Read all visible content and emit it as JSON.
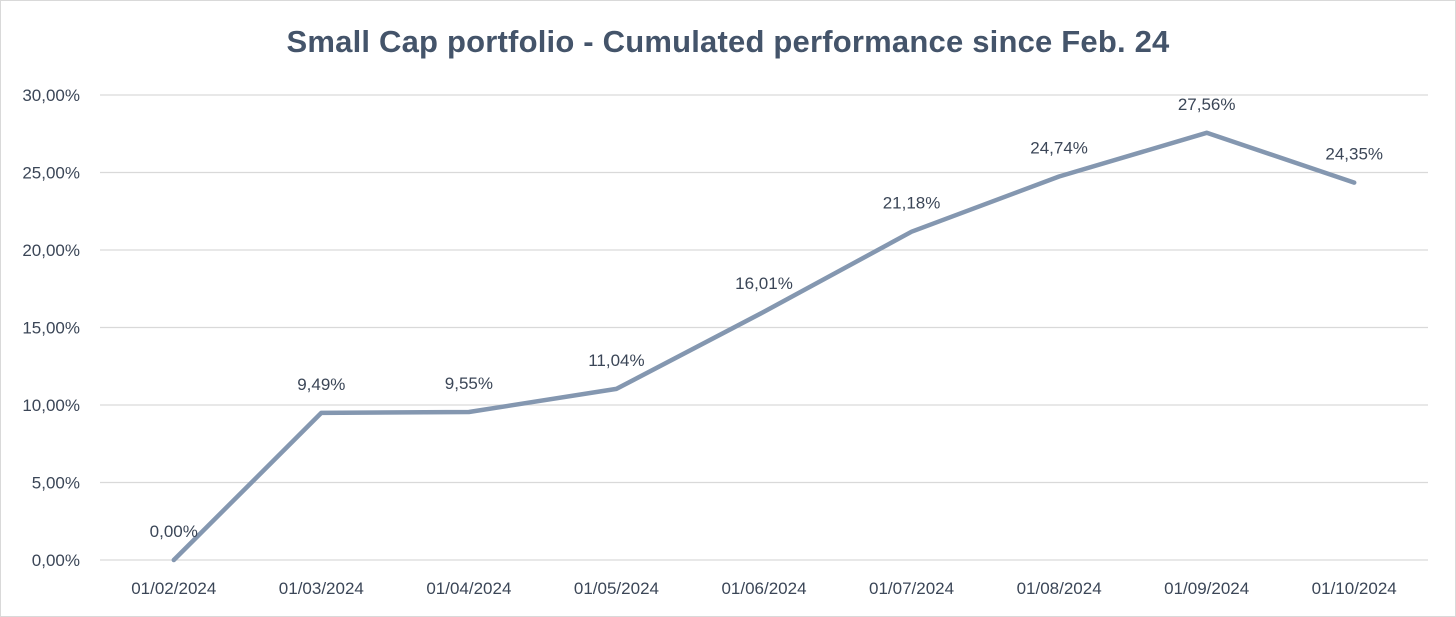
{
  "chart_data": {
    "type": "line",
    "title": "Small Cap portfolio - Cumulated performance since Feb. 24",
    "xlabel": "",
    "ylabel": "",
    "categories": [
      "01/02/2024",
      "01/03/2024",
      "01/04/2024",
      "01/05/2024",
      "01/06/2024",
      "01/07/2024",
      "01/08/2024",
      "01/09/2024",
      "01/10/2024"
    ],
    "series": [
      {
        "values": [
          0.0,
          9.49,
          9.55,
          11.04,
          16.01,
          21.18,
          24.74,
          27.56,
          24.35
        ],
        "data_labels": [
          "0,00%",
          "9,49%",
          "9,55%",
          "11,04%",
          "16,01%",
          "21,18%",
          "24,74%",
          "27,56%",
          "24,35%"
        ],
        "color": "#8497b0"
      }
    ],
    "ylim": [
      0,
      30
    ],
    "yticks": [
      0,
      5,
      10,
      15,
      20,
      25,
      30
    ],
    "ytick_labels": [
      "0,00%",
      "5,00%",
      "10,00%",
      "15,00%",
      "20,00%",
      "25,00%",
      "30,00%"
    ],
    "grid": "horizontal",
    "legend": "none",
    "colors": {
      "line": "#8497b0",
      "grid": "#d9d9d9",
      "title": "#44546a",
      "text": "#3b4657"
    }
  }
}
